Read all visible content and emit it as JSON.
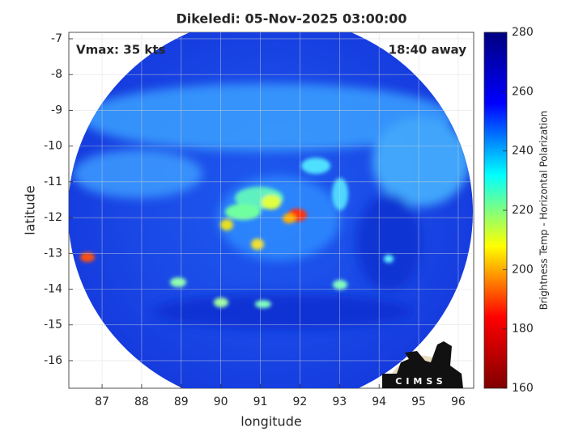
{
  "chart_data": {
    "type": "heatmap",
    "title": "Dikeledi: 05-Nov-2025 03:00:00",
    "annotations": [
      "Vmax: 35 kts",
      "18:40 away"
    ],
    "x_label": "longitude",
    "y_label": "latitude",
    "xlim": [
      86.16,
      96.39
    ],
    "xticks": [
      87,
      88,
      89,
      90,
      91,
      92,
      93,
      94,
      95,
      96
    ],
    "ylim": [
      -16.77,
      -6.82
    ],
    "yticks": [
      -7,
      -8,
      -9,
      -10,
      -11,
      -12,
      -13,
      -14,
      -15,
      -16
    ],
    "grid": true,
    "colorbar": {
      "label": "Brightness Temp - Horizontal Polarization",
      "lim": [
        160,
        280
      ],
      "ticks": [
        160,
        180,
        200,
        220,
        240,
        260,
        280
      ],
      "colors": [
        "#800000",
        "#ff0000",
        "#ffff00",
        "#00ffff",
        "#0000ff",
        "#000080"
      ]
    },
    "logo_text": "CIMSS"
  }
}
